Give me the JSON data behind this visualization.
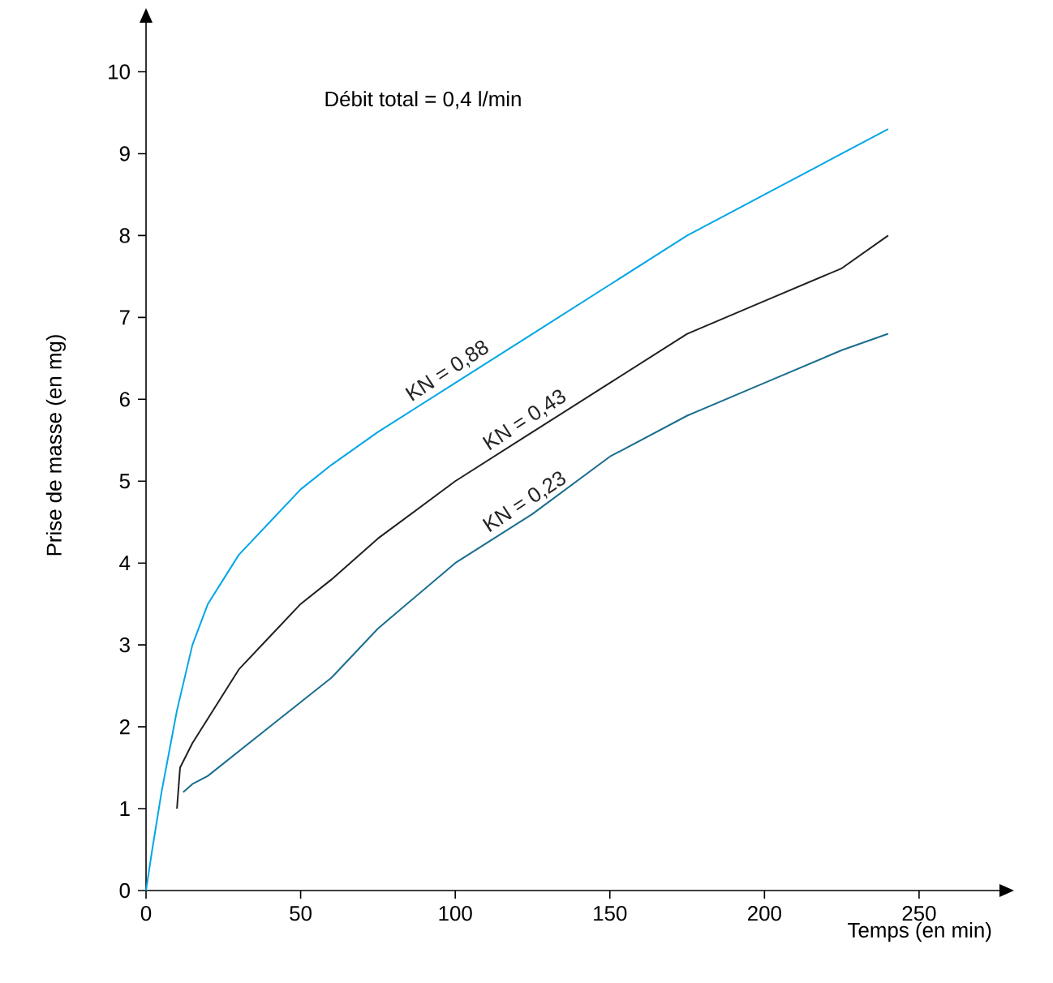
{
  "chart_data": {
    "type": "line",
    "xlabel": "Temps (en min)",
    "ylabel": "Prise de masse (en mg)",
    "annotations": [
      "Débit total = 0,4 l/min"
    ],
    "xlim": [
      0,
      276
    ],
    "ylim": [
      0,
      10.6
    ],
    "xticks": [
      0,
      50,
      100,
      150,
      200,
      250
    ],
    "yticks": [
      0,
      1,
      2,
      3,
      4,
      5,
      6,
      7,
      8,
      9,
      10
    ],
    "grid": false,
    "legend": false,
    "marker": "none",
    "line_style": "solid",
    "series": [
      {
        "name": "KN = 0,88",
        "color": "#00a6e6",
        "x": [
          0,
          2,
          5,
          8,
          10,
          15,
          20,
          25,
          30,
          40,
          50,
          60,
          75,
          100,
          125,
          150,
          175,
          200,
          225,
          240
        ],
        "values": [
          0,
          0.5,
          1.2,
          1.8,
          2.2,
          3.0,
          3.5,
          3.8,
          4.1,
          4.5,
          4.9,
          5.2,
          5.6,
          6.2,
          6.8,
          7.4,
          8.0,
          8.5,
          9.0,
          9.3
        ]
      },
      {
        "name": "KN = 0,43",
        "color": "#231f20",
        "x": [
          10,
          11,
          15,
          20,
          25,
          30,
          40,
          50,
          60,
          75,
          100,
          125,
          150,
          175,
          200,
          225,
          240
        ],
        "values": [
          1.0,
          1.5,
          1.8,
          2.1,
          2.4,
          2.7,
          3.1,
          3.5,
          3.8,
          4.3,
          5.0,
          5.6,
          6.2,
          6.8,
          7.2,
          7.6,
          8.0
        ]
      },
      {
        "name": "KN = 0,23",
        "color": "#1a6e8e",
        "x": [
          12,
          15,
          20,
          30,
          40,
          50,
          60,
          75,
          100,
          125,
          150,
          175,
          200,
          225,
          240
        ],
        "values": [
          1.2,
          1.3,
          1.4,
          1.7,
          2.0,
          2.3,
          2.6,
          3.2,
          4.0,
          4.6,
          5.3,
          5.8,
          6.2,
          6.6,
          6.8
        ]
      }
    ]
  }
}
